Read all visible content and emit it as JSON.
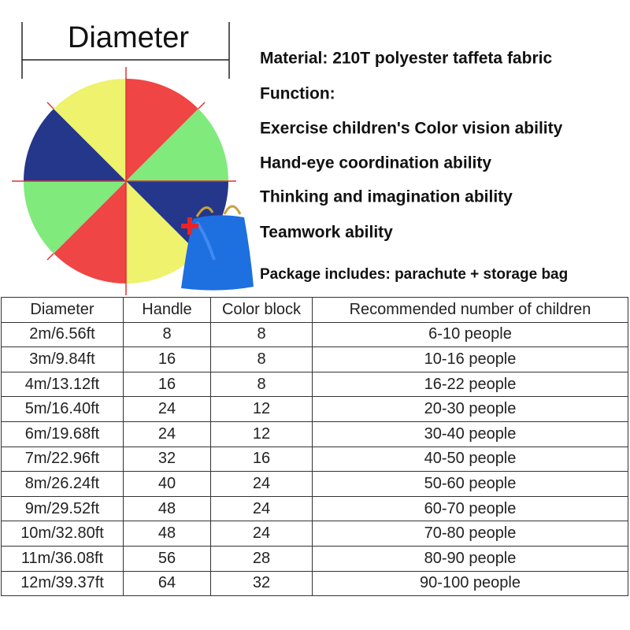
{
  "diagram_label": "Diameter",
  "features": [
    "Material:  210T polyester taffeta fabric",
    "Function:",
    "Exercise children's Color vision ability",
    "Hand-eye coordination ability",
    "Thinking and imagination ability",
    "Teamwork ability"
  ],
  "package": "Package includes: parachute + storage bag",
  "table": {
    "header": [
      "Diameter",
      "Handle",
      "Color block",
      "Recommended number of children"
    ],
    "rows": [
      [
        "2m/6.56ft",
        8,
        8,
        "6-10 people"
      ],
      [
        "3m/9.84ft",
        16,
        8,
        "10-16 people"
      ],
      [
        "4m/13.12ft",
        16,
        8,
        "16-22 people"
      ],
      [
        "5m/16.40ft",
        24,
        12,
        "20-30 people"
      ],
      [
        "6m/19.68ft",
        24,
        12,
        "30-40 people"
      ],
      [
        "7m/22.96ft",
        32,
        16,
        "40-50 people"
      ],
      [
        "8m/26.24ft",
        40,
        24,
        "50-60 people"
      ],
      [
        "9m/29.52ft",
        48,
        24,
        "60-70 people"
      ],
      [
        "10m/32.80ft",
        48,
        24,
        "70-80 people"
      ],
      [
        "11m/36.08ft",
        56,
        28,
        "80-90 people"
      ],
      [
        "12m/39.37ft",
        64,
        32,
        "90-100 people"
      ]
    ]
  }
}
